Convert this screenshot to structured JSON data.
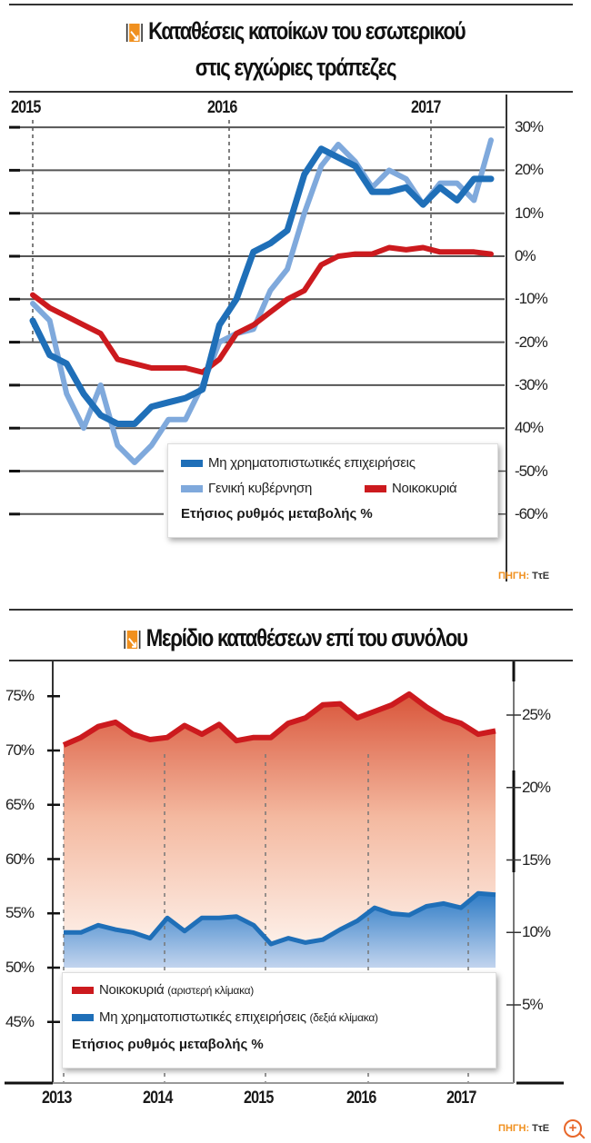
{
  "chart_data": [
    {
      "type": "line",
      "title": "Καταθέσεις κατοίκων του εσωτερικού στις εγχώριες τράπεζες",
      "x_tick_labels": [
        "2015",
        "2016",
        "2017"
      ],
      "y_tick_labels": [
        "30%",
        "20%",
        "10%",
        "0%",
        "-10%",
        "-20%",
        "-30%",
        "40%",
        "-50%",
        "-60%"
      ],
      "ylim": [
        -60,
        30
      ],
      "ylabel": "Ετήσιος ρυθμός μεταβολής %",
      "grid": true,
      "legend_position": "bottom-right inset",
      "x": [
        "2015-01",
        "2015-02",
        "2015-03",
        "2015-04",
        "2015-05",
        "2015-06",
        "2015-07",
        "2015-08",
        "2015-09",
        "2015-10",
        "2015-11",
        "2015-12",
        "2016-01",
        "2016-02",
        "2016-03",
        "2016-04",
        "2016-05",
        "2016-06",
        "2016-07",
        "2016-08",
        "2016-09",
        "2016-10",
        "2016-11",
        "2016-12",
        "2017-01",
        "2017-02",
        "2017-03",
        "2017-04"
      ],
      "series": [
        {
          "name": "Μη χρηματοπιστωτικές επιχειρήσεις",
          "color": "#1f6fb8",
          "values": [
            -15,
            -23,
            -25,
            -32,
            -37,
            -39,
            -39,
            -35,
            -34,
            -33,
            -31,
            -16,
            -10,
            1,
            3,
            6,
            19,
            25,
            23,
            21,
            15,
            15,
            16,
            12,
            16,
            13,
            18,
            18
          ]
        },
        {
          "name": "Γενική κυβέρνηση",
          "color": "#7fa9dc",
          "values": [
            -11,
            -15,
            -32,
            -40,
            -30,
            -44,
            -48,
            -44,
            -38,
            -38,
            -30,
            -20,
            -18,
            -17,
            -8,
            -3,
            10,
            21,
            26,
            22,
            16,
            20,
            18,
            12,
            17,
            17,
            13,
            27
          ]
        },
        {
          "name": "Νοικοκυριά",
          "color": "#cc1a1e",
          "values": [
            -9,
            -12,
            -14,
            -16,
            -18,
            -24,
            -25,
            -26,
            -26,
            -26,
            -27,
            -24,
            -18,
            -16,
            -13,
            -10,
            -8,
            -2,
            0,
            0.5,
            0.5,
            2,
            1.5,
            2,
            1,
            1,
            1,
            0.5
          ]
        }
      ]
    },
    {
      "type": "area",
      "title": "Μερίδιο καταθέσεων επί του συνόλου",
      "x_tick_labels": [
        "2013",
        "2014",
        "2015",
        "2016",
        "2017"
      ],
      "y_left_tick_labels": [
        "75%",
        "70%",
        "65%",
        "60%",
        "55%",
        "50%",
        "45%"
      ],
      "y_right_tick_labels": [
        "25%",
        "20%",
        "15%",
        "10%",
        "5%"
      ],
      "ylim_left": [
        45,
        75
      ],
      "ylim_right": [
        5,
        25
      ],
      "ylabel": "Ετήσιος ρυθμός μεταβολής %",
      "grid": false,
      "legend_position": "bottom inset",
      "x": [
        "2013-01",
        "2013-03",
        "2013-05",
        "2013-07",
        "2013-09",
        "2013-11",
        "2014-01",
        "2014-03",
        "2014-05",
        "2014-07",
        "2014-09",
        "2014-11",
        "2015-01",
        "2015-03",
        "2015-05",
        "2015-07",
        "2015-09",
        "2015-11",
        "2016-01",
        "2016-03",
        "2016-05",
        "2016-07",
        "2016-09",
        "2016-11",
        "2017-01",
        "2017-03"
      ],
      "series": [
        {
          "name": "Νοικοκυριά (αριστερή κλίμακα)",
          "axis": "left",
          "color": "#cc1a1e",
          "values": [
            70.5,
            71.2,
            72.2,
            72.6,
            71.5,
            71.0,
            71.2,
            72.3,
            71.5,
            72.4,
            70.9,
            71.2,
            71.2,
            72.5,
            73.0,
            74.2,
            74.3,
            73.0,
            73.6,
            74.2,
            75.2,
            74.0,
            73.0,
            72.5,
            71.5,
            71.8
          ]
        },
        {
          "name": "Μη χρηματοπιστωτικές επιχειρήσεις (δεξιά κλίμακα)",
          "axis": "right",
          "color": "#1f6fb8",
          "values": [
            10.0,
            10.0,
            10.5,
            10.2,
            10.0,
            9.6,
            11.0,
            10.1,
            11.0,
            11.0,
            11.1,
            10.5,
            9.2,
            9.6,
            9.3,
            9.5,
            10.2,
            10.8,
            11.7,
            11.3,
            11.2,
            11.8,
            12.0,
            11.7,
            12.7,
            12.6
          ]
        }
      ]
    }
  ],
  "chart1": {
    "title_line1": "Καταθέσεις κατοίκων του εσωτερικού",
    "title_line2": "στις εγχώριες τράπεζες",
    "years": [
      "2015",
      "2016",
      "2017"
    ],
    "yticks": [
      "30%",
      "20%",
      "10%",
      "0%",
      "-10%",
      "-20%",
      "-30%",
      "40%",
      "-50%",
      "-60%"
    ],
    "legend": {
      "s1": "Μη χρηματοπιστωτικές επιχειρήσεις",
      "s2": "Γενική κυβέρνηση",
      "s3": "Νοικοκυριά",
      "note": "Ετήσιος ρυθμός μεταβολής %"
    },
    "source_key": "ΠΗΓΗ:",
    "source_val": "ΤτΕ"
  },
  "chart2": {
    "title": "Μερίδιο καταθέσεων επί του συνόλου",
    "years": [
      "2013",
      "2014",
      "2015",
      "2016",
      "2017"
    ],
    "left_ticks": [
      "75%",
      "70%",
      "65%",
      "60%",
      "55%",
      "50%",
      "45%"
    ],
    "right_ticks": [
      "25%",
      "20%",
      "15%",
      "10%",
      "5%"
    ],
    "legend": {
      "s1": "Νοικοκυριά",
      "s1_note": "(αριστερή κλίμακα)",
      "s2": "Μη χρηματοπιστωτικές επιχειρήσεις",
      "s2_note": "(δεξιά κλίμακα)",
      "note": "Ετήσιος ρυθμός μεταβολής %"
    },
    "source_key": "ΠΗΓΗ:",
    "source_val": "ΤτΕ"
  },
  "colors": {
    "blue_dark": "#1f6fb8",
    "blue_light": "#7fa9dc",
    "red": "#cc1a1e",
    "orange": "#f0901e"
  },
  "zoom_icon": "zoom-in-icon"
}
